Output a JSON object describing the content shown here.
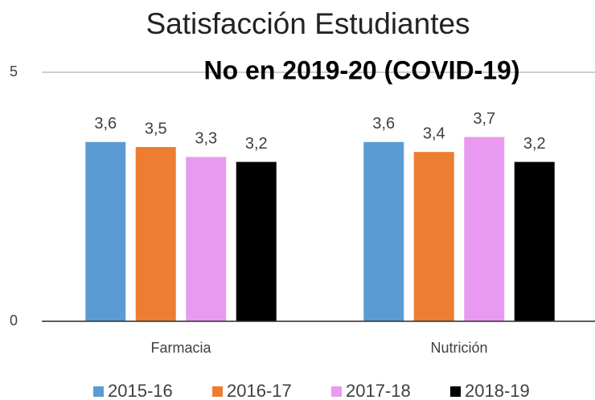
{
  "chart_data": {
    "type": "bar",
    "title": "Satisfacción Estudiantes",
    "annotation": "No en 2019-20 (COVID-19)",
    "categories": [
      "Farmacia",
      "Nutrición"
    ],
    "series": [
      {
        "name": "2015-16",
        "color": "#5b9bd5",
        "values": [
          3.6,
          3.6
        ],
        "value_labels": [
          "3,6",
          "3,6"
        ]
      },
      {
        "name": "2016-17",
        "color": "#ed7d31",
        "values": [
          3.5,
          3.4
        ],
        "value_labels": [
          "3,5",
          "3,4"
        ]
      },
      {
        "name": "2017-18",
        "color": "#e89af0",
        "values": [
          3.3,
          3.7
        ],
        "value_labels": [
          "3,3",
          "3,7"
        ]
      },
      {
        "name": "2018-19",
        "color": "#000000",
        "values": [
          3.2,
          3.2
        ],
        "value_labels": [
          "3,2",
          "3,2"
        ]
      }
    ],
    "ylim": [
      0,
      5
    ],
    "yticks": [
      0,
      5
    ],
    "grid": true,
    "legend": "bottom"
  }
}
